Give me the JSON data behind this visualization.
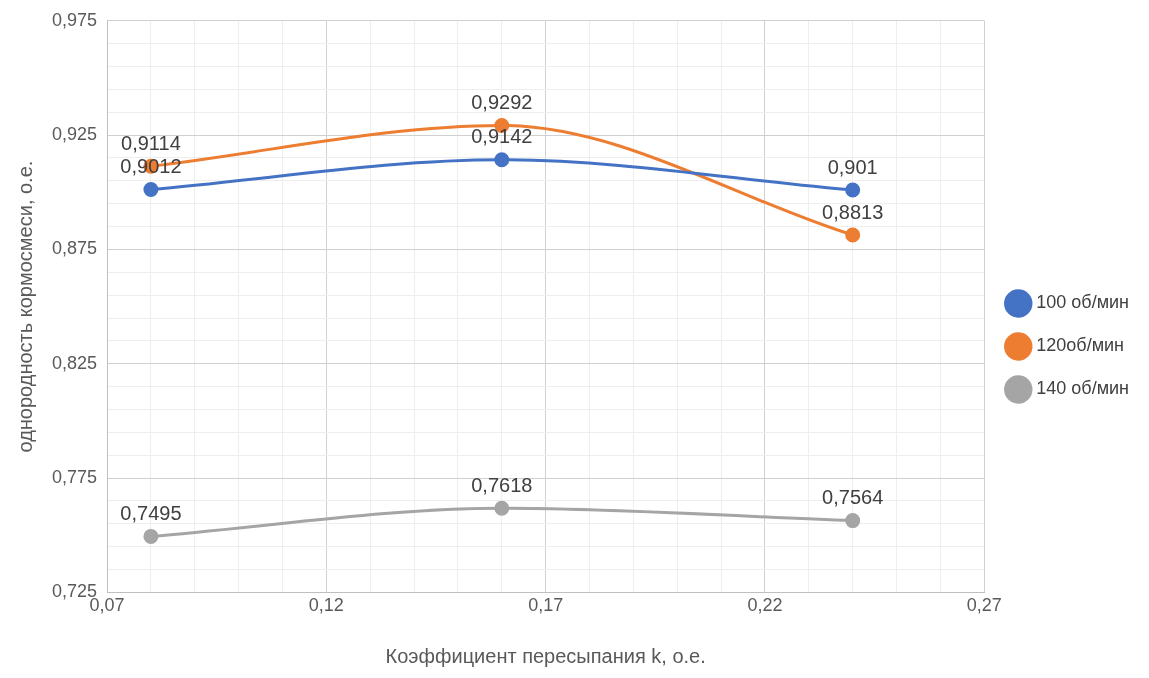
{
  "chart_data": {
    "type": "line",
    "xlabel": "Коэффициент пересыпания k, о.е.",
    "ylabel": "однородность кормосмеси, о.е.",
    "x": [
      0.08,
      0.16,
      0.24
    ],
    "series": [
      {
        "name": "100 об/мин",
        "color": "#4472c4",
        "values": [
          0.9012,
          0.9142,
          0.901
        ],
        "value_labels": [
          "0,9012",
          "0,9142",
          "0,901"
        ]
      },
      {
        "name": "120об/мин",
        "color": "#ed7d31",
        "values": [
          0.9114,
          0.9292,
          0.8813
        ],
        "value_labels": [
          "0,9114",
          "0,9292",
          "0,8813"
        ]
      },
      {
        "name": "140 об/мин",
        "color": "#a5a5a5",
        "values": [
          0.7495,
          0.7618,
          0.7564
        ],
        "value_labels": [
          "0,7495",
          "0,7618",
          "0,7564"
        ]
      }
    ],
    "xlim": [
      0.07,
      0.27
    ],
    "xticks": [
      {
        "value": 0.07,
        "label": "0,07"
      },
      {
        "value": 0.08,
        "label": null
      },
      {
        "value": 0.09,
        "label": null
      },
      {
        "value": 0.1,
        "label": null
      },
      {
        "value": 0.11,
        "label": null
      },
      {
        "value": 0.12,
        "label": "0,12"
      },
      {
        "value": 0.13,
        "label": null
      },
      {
        "value": 0.14,
        "label": null
      },
      {
        "value": 0.15,
        "label": null
      },
      {
        "value": 0.16,
        "label": null
      },
      {
        "value": 0.17,
        "label": "0,17"
      },
      {
        "value": 0.18,
        "label": null
      },
      {
        "value": 0.19,
        "label": null
      },
      {
        "value": 0.2,
        "label": null
      },
      {
        "value": 0.21,
        "label": null
      },
      {
        "value": 0.22,
        "label": "0,22"
      },
      {
        "value": 0.23,
        "label": null
      },
      {
        "value": 0.24,
        "label": null
      },
      {
        "value": 0.25,
        "label": null
      },
      {
        "value": 0.26,
        "label": null
      },
      {
        "value": 0.27,
        "label": "0,27"
      }
    ],
    "ylim": [
      0.725,
      0.975
    ],
    "yticks": [
      {
        "value": 0.725,
        "label": "0,725"
      },
      {
        "value": 0.735,
        "label": null
      },
      {
        "value": 0.745,
        "label": null
      },
      {
        "value": 0.755,
        "label": null
      },
      {
        "value": 0.765,
        "label": null
      },
      {
        "value": 0.775,
        "label": "0,775"
      },
      {
        "value": 0.785,
        "label": null
      },
      {
        "value": 0.795,
        "label": null
      },
      {
        "value": 0.805,
        "label": null
      },
      {
        "value": 0.815,
        "label": null
      },
      {
        "value": 0.825,
        "label": "0,825"
      },
      {
        "value": 0.835,
        "label": null
      },
      {
        "value": 0.845,
        "label": null
      },
      {
        "value": 0.855,
        "label": null
      },
      {
        "value": 0.865,
        "label": null
      },
      {
        "value": 0.875,
        "label": "0,875"
      },
      {
        "value": 0.885,
        "label": null
      },
      {
        "value": 0.895,
        "label": null
      },
      {
        "value": 0.905,
        "label": null
      },
      {
        "value": 0.915,
        "label": null
      },
      {
        "value": 0.925,
        "label": "0,925"
      },
      {
        "value": 0.935,
        "label": null
      },
      {
        "value": 0.945,
        "label": null
      },
      {
        "value": 0.955,
        "label": null
      },
      {
        "value": 0.965,
        "label": null
      },
      {
        "value": 0.975,
        "label": "0,975"
      }
    ],
    "grid": true,
    "legend": "right",
    "marker": "circle",
    "line_style": "solid"
  }
}
